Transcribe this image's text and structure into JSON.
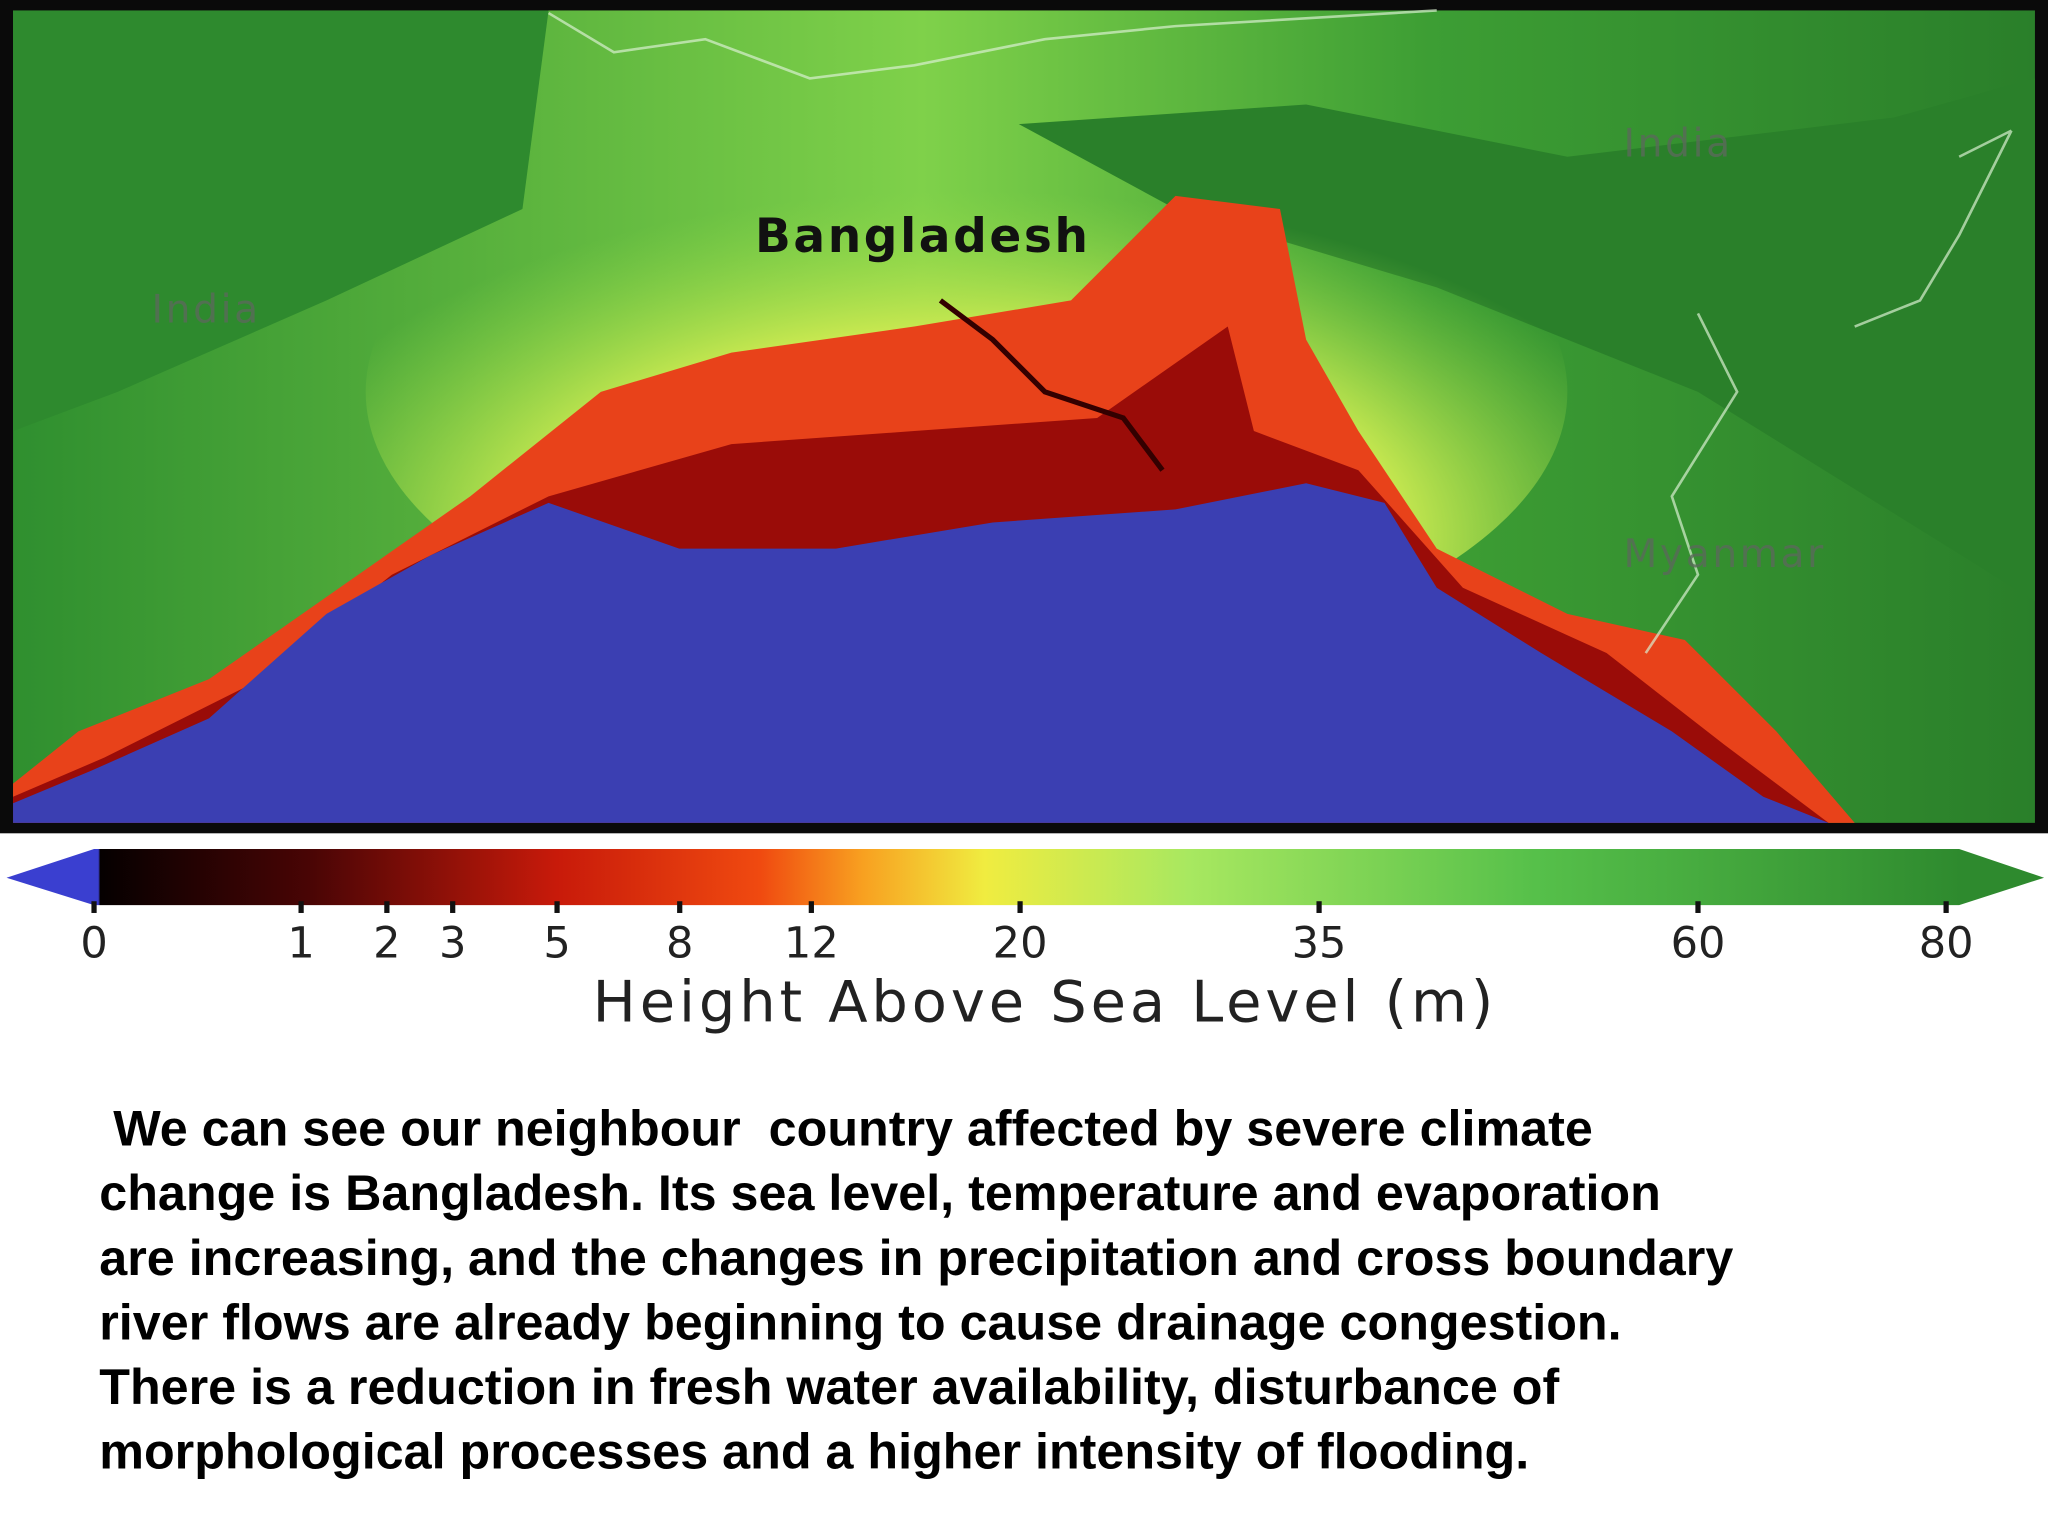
{
  "map": {
    "labels": [
      {
        "text": "Bangladesh"
      },
      {
        "text": "India"
      },
      {
        "text": "India"
      },
      {
        "text": "Myanmar"
      }
    ]
  },
  "colorbar": {
    "label": "Height Above Sea Level (m)",
    "range": [
      0,
      80
    ],
    "scale": "sqrt",
    "ticks": [
      0,
      1,
      2,
      3,
      5,
      8,
      12,
      20,
      35,
      60,
      80
    ]
  },
  "paragraph": {
    "lines": [
      " We can see our neighbour  country affected by severe climate",
      "change is Bangladesh. Its sea level, temperature and evaporation",
      "are increasing, and the changes in precipitation and cross boundary",
      "river flows are already beginning to cause drainage congestion.",
      "There is a reduction in fresh water availability, disturbance of",
      "morphological processes and a higher intensity of flooding."
    ]
  }
}
